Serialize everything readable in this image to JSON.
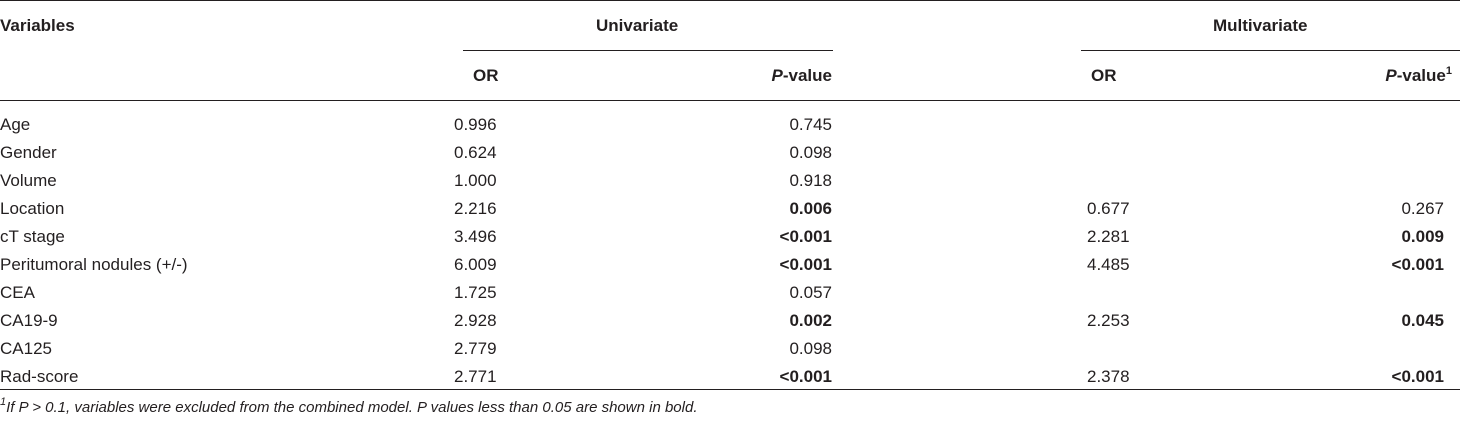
{
  "header": {
    "variables": "Variables",
    "univariate": "Univariate",
    "multivariate": "Multivariate",
    "or": "OR",
    "p_italic": "P",
    "p_rest": "-value",
    "p_sup": "1"
  },
  "rows": [
    {
      "var": "Age",
      "u_or": "0.996",
      "u_p": "0.745",
      "u_bold": false,
      "m_or": "",
      "m_p": "",
      "m_bold": false
    },
    {
      "var": "Gender",
      "u_or": "0.624",
      "u_p": "0.098",
      "u_bold": false,
      "m_or": "",
      "m_p": "",
      "m_bold": false
    },
    {
      "var": "Volume",
      "u_or": "1.000",
      "u_p": "0.918",
      "u_bold": false,
      "m_or": "",
      "m_p": "",
      "m_bold": false
    },
    {
      "var": "Location",
      "u_or": "2.216",
      "u_p": "0.006",
      "u_bold": true,
      "m_or": "0.677",
      "m_p": "0.267",
      "m_bold": false
    },
    {
      "var": "cT stage",
      "u_or": "3.496",
      "u_p": "<0.001",
      "u_bold": true,
      "m_or": "2.281",
      "m_p": "0.009",
      "m_bold": true
    },
    {
      "var": "Peritumoral nodules (+/-)",
      "u_or": "6.009",
      "u_p": "<0.001",
      "u_bold": true,
      "m_or": "4.485",
      "m_p": "<0.001",
      "m_bold": true
    },
    {
      "var": "CEA",
      "u_or": "1.725",
      "u_p": "0.057",
      "u_bold": false,
      "m_or": "",
      "m_p": "",
      "m_bold": false
    },
    {
      "var": "CA19-9",
      "u_or": "2.928",
      "u_p": "0.002",
      "u_bold": true,
      "m_or": "2.253",
      "m_p": "0.045",
      "m_bold": true
    },
    {
      "var": "CA125",
      "u_or": "2.779",
      "u_p": "0.098",
      "u_bold": false,
      "m_or": "",
      "m_p": "",
      "m_bold": false
    },
    {
      "var": "Rad-score",
      "u_or": "2.771",
      "u_p": "<0.001",
      "u_bold": true,
      "m_or": "2.378",
      "m_p": "<0.001",
      "m_bold": true
    }
  ],
  "footnote": {
    "sup": "1",
    "text": "If P > 0.1, variables were excluded from the combined model. P values less than 0.05 are shown in bold."
  }
}
